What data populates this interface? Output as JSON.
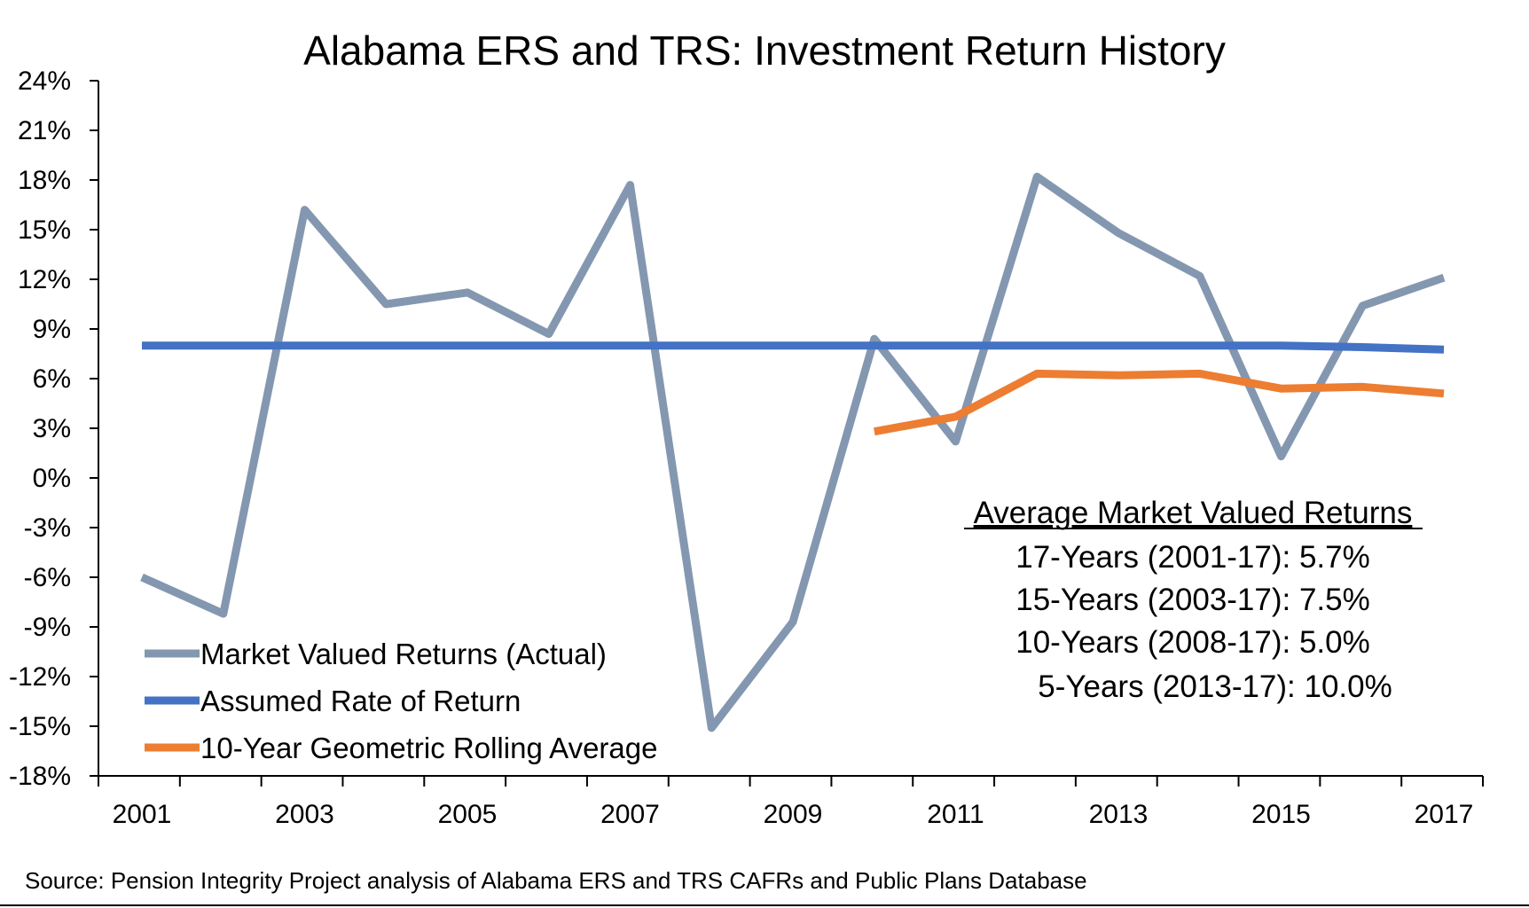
{
  "chart_data": {
    "type": "line",
    "title": "Alabama ERS and TRS: Investment Return History",
    "xlabel": "",
    "ylabel": "",
    "ylim": [
      -18,
      24
    ],
    "ytick_step": 3,
    "y_tick_labels": [
      "24%",
      "21%",
      "18%",
      "15%",
      "12%",
      "9%",
      "6%",
      "3%",
      "0%",
      "-3%",
      "-6%",
      "-9%",
      "-12%",
      "-15%",
      "-18%"
    ],
    "x": [
      2001,
      2002,
      2003,
      2004,
      2005,
      2006,
      2007,
      2008,
      2009,
      2010,
      2011,
      2012,
      2013,
      2014,
      2015,
      2016,
      2017
    ],
    "x_tick_labels": [
      "2001",
      "2003",
      "2005",
      "2007",
      "2009",
      "2011",
      "2013",
      "2015",
      "2017"
    ],
    "series": [
      {
        "name": "Market Valued Returns (Actual)",
        "color": "#8497B0",
        "values": [
          -6.0,
          -8.2,
          16.2,
          10.5,
          11.2,
          8.7,
          17.7,
          -15.1,
          -8.7,
          8.4,
          2.2,
          18.2,
          14.8,
          12.2,
          1.3,
          10.4,
          12.1
        ]
      },
      {
        "name": "Assumed Rate of Return",
        "color": "#4472C4",
        "values": [
          8.0,
          8.0,
          8.0,
          8.0,
          8.0,
          8.0,
          8.0,
          8.0,
          8.0,
          8.0,
          8.0,
          8.0,
          8.0,
          8.0,
          8.0,
          7.9,
          7.75
        ]
      },
      {
        "name": "10-Year Geometric Rolling Average",
        "color": "#ED7D31",
        "values": [
          null,
          null,
          null,
          null,
          null,
          null,
          null,
          null,
          null,
          2.8,
          3.7,
          6.3,
          6.2,
          6.3,
          5.4,
          5.5,
          5.1
        ]
      }
    ],
    "legend": {
      "placement": "bottom-left",
      "entries": [
        "Market Valued Returns (Actual)",
        "Assumed Rate of Return",
        "10-Year Geometric Rolling Average"
      ]
    },
    "annotation": {
      "title": "Average Market Valued Returns",
      "lines": [
        "17-Years (2001-17): 5.7%",
        "15-Years (2003-17): 7.5%",
        "10-Years (2008-17): 5.0%",
        "5-Years (2013-17): 10.0%"
      ]
    },
    "source": "Source: Pension Integrity Project analysis of Alabama ERS and TRS CAFRs and Public Plans Database"
  }
}
